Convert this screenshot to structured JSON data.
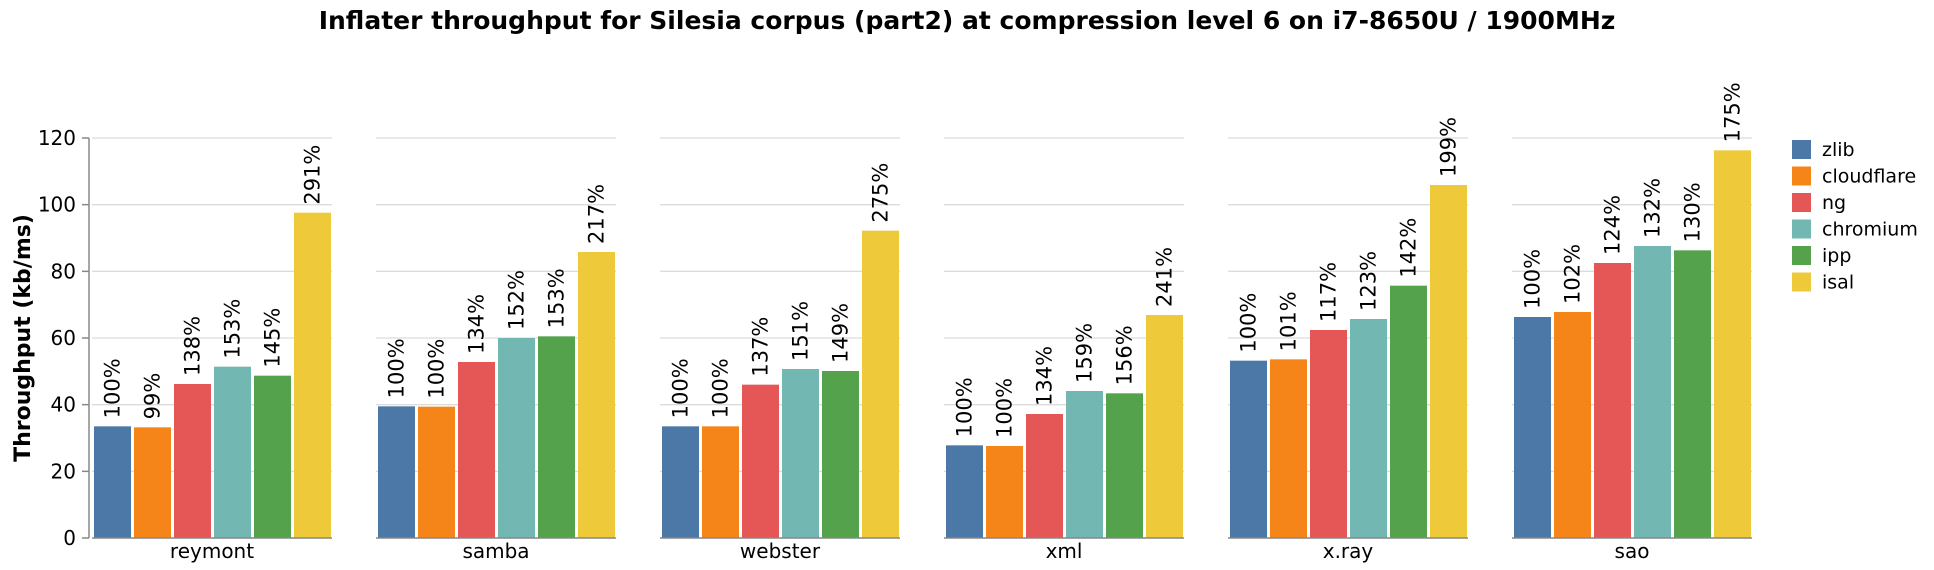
{
  "chart_data": {
    "type": "bar",
    "title": "Inflater throughput for Silesia corpus (part2) at compression level 6 on i7-8650U / 1900MHz",
    "xlabel": "",
    "ylabel": "Throughput (kb/ms)",
    "ylim": [
      0,
      120
    ],
    "yticks": [
      0,
      20,
      40,
      60,
      80,
      100,
      120
    ],
    "grid": true,
    "legend": "right",
    "categories": [
      "reymont",
      "samba",
      "webster",
      "xml",
      "x.ray",
      "sao"
    ],
    "series": [
      {
        "name": "zlib",
        "color": "#4c78a8",
        "values": [
          33.5,
          39.5,
          33.5,
          27.8,
          53.2,
          66.3
        ],
        "labels": [
          "100%",
          "100%",
          "100%",
          "100%",
          "100%",
          "100%"
        ]
      },
      {
        "name": "cloudflare",
        "color": "#f58518",
        "values": [
          33.2,
          39.4,
          33.5,
          27.6,
          53.6,
          67.8
        ],
        "labels": [
          "99%",
          "100%",
          "100%",
          "100%",
          "101%",
          "102%"
        ]
      },
      {
        "name": "ng",
        "color": "#e45756",
        "values": [
          46.2,
          52.8,
          46.0,
          37.2,
          62.4,
          82.5
        ],
        "labels": [
          "138%",
          "134%",
          "137%",
          "134%",
          "117%",
          "124%"
        ]
      },
      {
        "name": "chromium",
        "color": "#72b7b2",
        "values": [
          51.4,
          60.0,
          50.7,
          44.1,
          65.7,
          87.6
        ],
        "labels": [
          "153%",
          "152%",
          "151%",
          "159%",
          "123%",
          "132%"
        ]
      },
      {
        "name": "ipp",
        "color": "#54a24b",
        "values": [
          48.7,
          60.5,
          50.1,
          43.4,
          75.7,
          86.3
        ],
        "labels": [
          "145%",
          "153%",
          "149%",
          "156%",
          "142%",
          "130%"
        ]
      },
      {
        "name": "isal",
        "color": "#eeca3b",
        "values": [
          97.6,
          85.8,
          92.2,
          66.9,
          105.9,
          116.3
        ],
        "labels": [
          "291%",
          "217%",
          "275%",
          "241%",
          "199%",
          "175%"
        ]
      }
    ]
  }
}
